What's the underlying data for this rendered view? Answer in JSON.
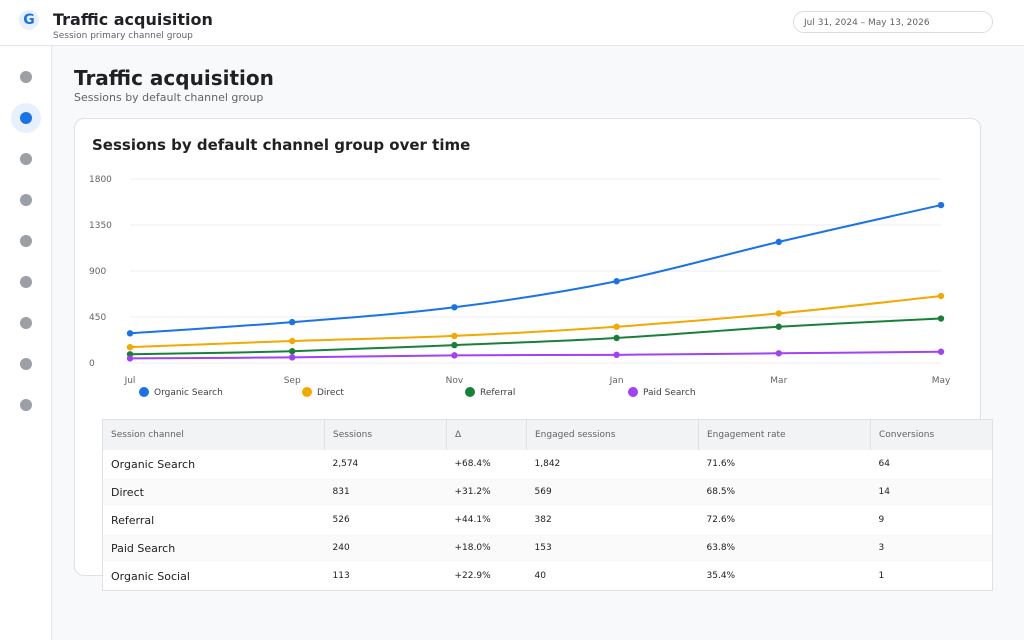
{
  "header": {
    "logo_letter": "G",
    "title": "Traffic acquisition",
    "subtitle": "Session primary channel group",
    "date_range": "Jul 31, 2024 – May 13, 2026"
  },
  "sidebar": {
    "item_count": 9,
    "active_index": 1
  },
  "page": {
    "title": "Traffic acquisition",
    "subtitle": "Sessions by default channel group"
  },
  "chart_card": {
    "title": "Sessions by default channel group over time"
  },
  "chart_data": {
    "type": "line",
    "title": "Sessions by default channel group over time",
    "x": [
      "Jul",
      "Sep",
      "Nov",
      "Jan",
      "Mar",
      "May"
    ],
    "yticks": [
      0,
      450,
      900,
      1350,
      1800
    ],
    "ylim": [
      0,
      1800
    ],
    "grid": true,
    "legend": "bottom",
    "series": [
      {
        "name": "Organic Search",
        "color": "#1a73e8",
        "values": [
          290,
          400,
          545,
          800,
          1185,
          1545
        ]
      },
      {
        "name": "Direct",
        "color": "#f2a900",
        "values": [
          155,
          215,
          265,
          355,
          485,
          655
        ]
      },
      {
        "name": "Referral",
        "color": "#188038",
        "values": [
          85,
          115,
          175,
          245,
          355,
          435
        ]
      },
      {
        "name": "Paid Search",
        "color": "#a142f4",
        "values": [
          45,
          55,
          75,
          80,
          95,
          110
        ]
      }
    ]
  },
  "table": {
    "columns": [
      "Session channel",
      "Sessions",
      "Δ",
      "Engaged sessions",
      "Engagement rate",
      "Conversions"
    ],
    "rows": [
      [
        "Organic Search",
        "2,574",
        "+68.4%",
        "1,842",
        "71.6%",
        "64"
      ],
      [
        "Direct",
        "831",
        "+31.2%",
        "569",
        "68.5%",
        "14"
      ],
      [
        "Referral",
        "526",
        "+44.1%",
        "382",
        "72.6%",
        "9"
      ],
      [
        "Paid Search",
        "240",
        "+18.0%",
        "153",
        "63.8%",
        "3"
      ],
      [
        "Organic Social",
        "113",
        "+22.9%",
        "40",
        "35.4%",
        "1"
      ]
    ]
  }
}
